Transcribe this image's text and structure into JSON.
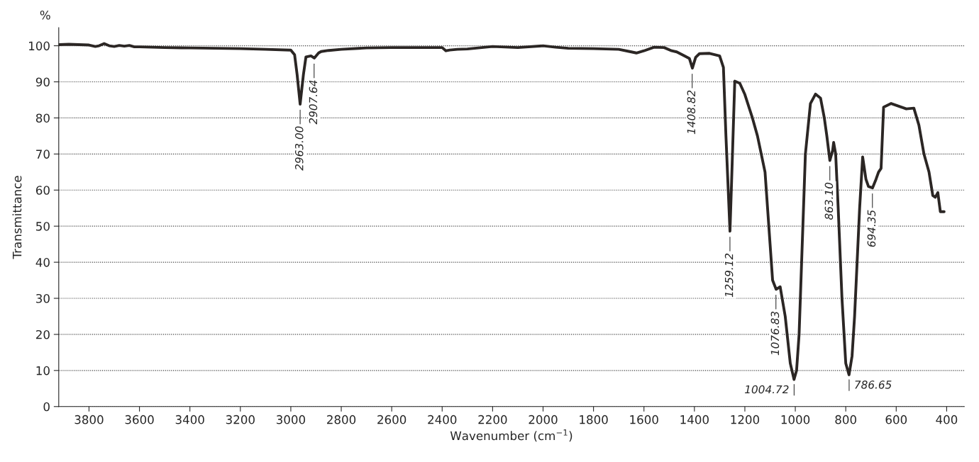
{
  "chart_data": {
    "type": "line",
    "xlabel": "Wavenumber (cm$^{−1}$)",
    "ylabel": "Transmittance",
    "xlim": [
      3920,
      330
    ],
    "ylim": [
      0,
      105
    ],
    "xticks": [
      3800,
      3600,
      3400,
      3200,
      3000,
      2800,
      2600,
      2400,
      2200,
      2000,
      1800,
      1600,
      1400,
      1200,
      1000,
      800,
      600,
      400
    ],
    "yticks": [
      0,
      10,
      20,
      30,
      40,
      50,
      60,
      70,
      80,
      90,
      100
    ],
    "grid": "y",
    "legend": false,
    "marker": "none",
    "line_style": "solid",
    "series": [
      {
        "color": "#2b2624",
        "x": [
          3917,
          3880,
          3840,
          3800,
          3775,
          3760,
          3740,
          3720,
          3700,
          3680,
          3660,
          3640,
          3620,
          3600,
          3500,
          3400,
          3300,
          3200,
          3100,
          3000,
          2985,
          2975,
          2963,
          2950,
          2940,
          2920,
          2907,
          2890,
          2880,
          2850,
          2800,
          2700,
          2600,
          2500,
          2400,
          2385,
          2370,
          2340,
          2300,
          2200,
          2100,
          2000,
          1950,
          1900,
          1800,
          1700,
          1650,
          1630,
          1600,
          1560,
          1520,
          1490,
          1470,
          1440,
          1420,
          1408,
          1395,
          1380,
          1340,
          1300,
          1285,
          1275,
          1259,
          1250,
          1240,
          1220,
          1200,
          1170,
          1150,
          1120,
          1100,
          1090,
          1076,
          1060,
          1040,
          1020,
          1005,
          995,
          985,
          975,
          960,
          940,
          920,
          900,
          885,
          875,
          863,
          852,
          848,
          840,
          830,
          815,
          800,
          787,
          775,
          765,
          755,
          745,
          733,
          720,
          710,
          694,
          680,
          670,
          660,
          650,
          620,
          580,
          560,
          530,
          510,
          490,
          470,
          455,
          445,
          435,
          425,
          410
        ],
        "values": [
          100.3,
          100.4,
          100.3,
          100.2,
          99.8,
          100.0,
          100.6,
          100.0,
          99.8,
          100.1,
          99.9,
          100.1,
          99.7,
          99.7,
          99.5,
          99.4,
          99.3,
          99.2,
          99.0,
          98.8,
          97.5,
          92,
          83.8,
          92,
          96.9,
          97.2,
          96.6,
          98.0,
          98.4,
          98.7,
          99.0,
          99.4,
          99.5,
          99.5,
          99.5,
          98.6,
          98.8,
          99.0,
          99.1,
          99.8,
          99.5,
          100.0,
          99.6,
          99.3,
          99.2,
          99.0,
          98.3,
          98.0,
          98.6,
          99.6,
          99.5,
          98.6,
          98.3,
          97.2,
          96.5,
          93.8,
          96.8,
          97.8,
          97.9,
          97.2,
          94,
          75,
          48.6,
          68,
          90.2,
          89.6,
          86.5,
          80,
          75,
          65,
          45,
          35,
          32.5,
          33.2,
          25,
          12,
          7.5,
          10,
          20,
          40,
          70,
          84,
          86.6,
          85.5,
          80,
          75,
          68.2,
          71,
          73.2,
          70,
          55,
          30,
          12,
          8.8,
          14,
          25,
          40,
          55,
          69.2,
          63,
          61,
          60.6,
          63,
          65,
          66,
          83,
          84,
          83,
          82.5,
          82.7,
          78,
          70,
          65,
          58.5,
          58,
          59.3,
          54,
          54
        ]
      }
    ],
    "annotations": [
      "%",
      {
        "text": "2963.00",
        "x": 2963.0,
        "y": 83.8
      },
      {
        "text": "2907.64",
        "x": 2907.64,
        "y": 96.6
      },
      {
        "text": "1408.82",
        "x": 1408.82,
        "y": 93.8
      },
      {
        "text": "1259.12",
        "x": 1259.12,
        "y": 48.6
      },
      {
        "text": "1076.83",
        "x": 1076.83,
        "y": 32.5
      },
      {
        "text": "1004.72",
        "x": 1004.72,
        "y": 7.5
      },
      {
        "text": "863.10",
        "x": 863.1,
        "y": 68.2
      },
      {
        "text": "786.65",
        "x": 786.65,
        "y": 8.8
      },
      {
        "text": "694.35",
        "x": 694.35,
        "y": 60.6
      }
    ]
  }
}
